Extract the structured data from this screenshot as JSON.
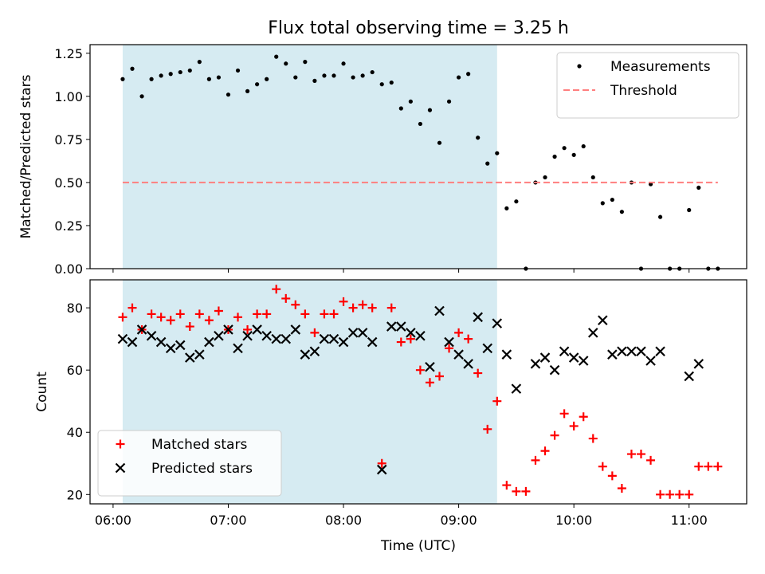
{
  "chart_data": [
    {
      "type": "scatter",
      "title": "Flux total observing time = 3.25 h",
      "xlabel": "",
      "ylabel": "Matched/Predicted stars",
      "ylim": [
        0,
        1.3
      ],
      "yticks": [
        "0.00",
        "0.25",
        "0.50",
        "0.75",
        "1.00",
        "1.25"
      ],
      "xlim": [
        "05:48",
        "11:30"
      ],
      "shaded_interval": [
        "06:05",
        "09:20"
      ],
      "shade_color": "#add8e6",
      "legend_position": "upper right",
      "series": [
        {
          "name": "Measurements",
          "marker": "dot",
          "color": "#000000",
          "points": [
            [
              "06:05",
              1.1
            ],
            [
              "06:10",
              1.16
            ],
            [
              "06:15",
              1.0
            ],
            [
              "06:20",
              1.1
            ],
            [
              "06:25",
              1.12
            ],
            [
              "06:30",
              1.13
            ],
            [
              "06:35",
              1.14
            ],
            [
              "06:40",
              1.15
            ],
            [
              "06:45",
              1.2
            ],
            [
              "06:50",
              1.1
            ],
            [
              "06:55",
              1.11
            ],
            [
              "07:00",
              1.01
            ],
            [
              "07:05",
              1.15
            ],
            [
              "07:10",
              1.03
            ],
            [
              "07:15",
              1.07
            ],
            [
              "07:20",
              1.1
            ],
            [
              "07:25",
              1.23
            ],
            [
              "07:30",
              1.19
            ],
            [
              "07:35",
              1.11
            ],
            [
              "07:40",
              1.2
            ],
            [
              "07:45",
              1.09
            ],
            [
              "07:50",
              1.12
            ],
            [
              "07:55",
              1.12
            ],
            [
              "08:00",
              1.19
            ],
            [
              "08:05",
              1.11
            ],
            [
              "08:10",
              1.12
            ],
            [
              "08:15",
              1.14
            ],
            [
              "08:20",
              1.07
            ],
            [
              "08:25",
              1.08
            ],
            [
              "08:30",
              0.93
            ],
            [
              "08:35",
              0.97
            ],
            [
              "08:40",
              0.84
            ],
            [
              "08:45",
              0.92
            ],
            [
              "08:50",
              0.73
            ],
            [
              "08:55",
              0.97
            ],
            [
              "09:00",
              1.11
            ],
            [
              "09:05",
              1.13
            ],
            [
              "09:10",
              0.76
            ],
            [
              "09:15",
              0.61
            ],
            [
              "09:20",
              0.67
            ],
            [
              "09:25",
              0.35
            ],
            [
              "09:30",
              0.39
            ],
            [
              "09:35",
              0.0
            ],
            [
              "09:40",
              0.5
            ],
            [
              "09:45",
              0.53
            ],
            [
              "09:50",
              0.65
            ],
            [
              "09:55",
              0.7
            ],
            [
              "10:00",
              0.66
            ],
            [
              "10:05",
              0.71
            ],
            [
              "10:10",
              0.53
            ],
            [
              "10:15",
              0.38
            ],
            [
              "10:20",
              0.4
            ],
            [
              "10:25",
              0.33
            ],
            [
              "10:30",
              0.5
            ],
            [
              "10:35",
              0.0
            ],
            [
              "10:40",
              0.49
            ],
            [
              "10:45",
              0.3
            ],
            [
              "10:50",
              0.0
            ],
            [
              "10:55",
              0.0
            ],
            [
              "11:00",
              0.34
            ],
            [
              "11:05",
              0.47
            ],
            [
              "11:10",
              0.0
            ],
            [
              "11:15",
              0.0
            ]
          ]
        },
        {
          "name": "Threshold",
          "style": "dashed",
          "color": "#ff7f7f",
          "points": [
            [
              "06:05",
              0.5
            ],
            [
              "11:15",
              0.5
            ]
          ]
        }
      ]
    },
    {
      "type": "scatter",
      "title": "",
      "xlabel": "Time (UTC)",
      "ylabel": "Count",
      "ylim": [
        17,
        89
      ],
      "yticks": [
        "20",
        "40",
        "60",
        "80"
      ],
      "xlim": [
        "05:48",
        "11:30"
      ],
      "xticks": [
        "06:00",
        "07:00",
        "08:00",
        "09:00",
        "10:00",
        "11:00"
      ],
      "shaded_interval": [
        "06:05",
        "09:20"
      ],
      "shade_color": "#add8e6",
      "legend_position": "lower left",
      "series": [
        {
          "name": "Matched stars",
          "marker": "plus",
          "color": "#ff0000",
          "points": [
            [
              "06:05",
              77
            ],
            [
              "06:10",
              80
            ],
            [
              "06:15",
              73
            ],
            [
              "06:20",
              78
            ],
            [
              "06:25",
              77
            ],
            [
              "06:30",
              76
            ],
            [
              "06:35",
              78
            ],
            [
              "06:40",
              74
            ],
            [
              "06:45",
              78
            ],
            [
              "06:50",
              76
            ],
            [
              "06:55",
              79
            ],
            [
              "07:00",
              73
            ],
            [
              "07:05",
              77
            ],
            [
              "07:10",
              73
            ],
            [
              "07:15",
              78
            ],
            [
              "07:20",
              78
            ],
            [
              "07:25",
              86
            ],
            [
              "07:30",
              83
            ],
            [
              "07:35",
              81
            ],
            [
              "07:40",
              78
            ],
            [
              "07:45",
              72
            ],
            [
              "07:50",
              78
            ],
            [
              "07:55",
              78
            ],
            [
              "08:00",
              82
            ],
            [
              "08:05",
              80
            ],
            [
              "08:10",
              81
            ],
            [
              "08:15",
              80
            ],
            [
              "08:20",
              30
            ],
            [
              "08:25",
              80
            ],
            [
              "08:30",
              69
            ],
            [
              "08:35",
              70
            ],
            [
              "08:40",
              60
            ],
            [
              "08:45",
              56
            ],
            [
              "08:50",
              58
            ],
            [
              "08:55",
              67
            ],
            [
              "09:00",
              72
            ],
            [
              "09:05",
              70
            ],
            [
              "09:10",
              59
            ],
            [
              "09:15",
              41
            ],
            [
              "09:20",
              50
            ],
            [
              "09:25",
              23
            ],
            [
              "09:30",
              21
            ],
            [
              "09:35",
              21
            ],
            [
              "09:40",
              31
            ],
            [
              "09:45",
              34
            ],
            [
              "09:50",
              39
            ],
            [
              "09:55",
              46
            ],
            [
              "10:00",
              42
            ],
            [
              "10:05",
              45
            ],
            [
              "10:10",
              38
            ],
            [
              "10:15",
              29
            ],
            [
              "10:20",
              26
            ],
            [
              "10:25",
              22
            ],
            [
              "10:30",
              33
            ],
            [
              "10:35",
              33
            ],
            [
              "10:40",
              31
            ],
            [
              "10:45",
              20
            ],
            [
              "10:50",
              20
            ],
            [
              "10:55",
              20
            ],
            [
              "11:00",
              20
            ],
            [
              "11:05",
              29
            ],
            [
              "11:10",
              29
            ],
            [
              "11:15",
              29
            ]
          ]
        },
        {
          "name": "Predicted stars",
          "marker": "x",
          "color": "#000000",
          "points": [
            [
              "06:05",
              70
            ],
            [
              "06:10",
              69
            ],
            [
              "06:15",
              73
            ],
            [
              "06:20",
              71
            ],
            [
              "06:25",
              69
            ],
            [
              "06:30",
              67
            ],
            [
              "06:35",
              68
            ],
            [
              "06:40",
              64
            ],
            [
              "06:45",
              65
            ],
            [
              "06:50",
              69
            ],
            [
              "06:55",
              71
            ],
            [
              "07:00",
              73
            ],
            [
              "07:05",
              67
            ],
            [
              "07:10",
              71
            ],
            [
              "07:15",
              73
            ],
            [
              "07:20",
              71
            ],
            [
              "07:25",
              70
            ],
            [
              "07:30",
              70
            ],
            [
              "07:35",
              73
            ],
            [
              "07:40",
              65
            ],
            [
              "07:45",
              66
            ],
            [
              "07:50",
              70
            ],
            [
              "07:55",
              70
            ],
            [
              "08:00",
              69
            ],
            [
              "08:05",
              72
            ],
            [
              "08:10",
              72
            ],
            [
              "08:15",
              69
            ],
            [
              "08:20",
              28
            ],
            [
              "08:25",
              74
            ],
            [
              "08:30",
              74
            ],
            [
              "08:35",
              72
            ],
            [
              "08:40",
              71
            ],
            [
              "08:45",
              61
            ],
            [
              "08:50",
              79
            ],
            [
              "08:55",
              69
            ],
            [
              "09:00",
              65
            ],
            [
              "09:05",
              62
            ],
            [
              "09:10",
              77
            ],
            [
              "09:15",
              67
            ],
            [
              "09:20",
              75
            ],
            [
              "09:25",
              65
            ],
            [
              "09:30",
              54
            ],
            [
              "09:40",
              62
            ],
            [
              "09:45",
              64
            ],
            [
              "09:50",
              60
            ],
            [
              "09:55",
              66
            ],
            [
              "10:00",
              64
            ],
            [
              "10:05",
              63
            ],
            [
              "10:10",
              72
            ],
            [
              "10:15",
              76
            ],
            [
              "10:20",
              65
            ],
            [
              "10:25",
              66
            ],
            [
              "10:30",
              66
            ],
            [
              "10:35",
              66
            ],
            [
              "10:40",
              63
            ],
            [
              "10:45",
              66
            ],
            [
              "11:00",
              58
            ],
            [
              "11:05",
              62
            ]
          ]
        }
      ]
    }
  ]
}
